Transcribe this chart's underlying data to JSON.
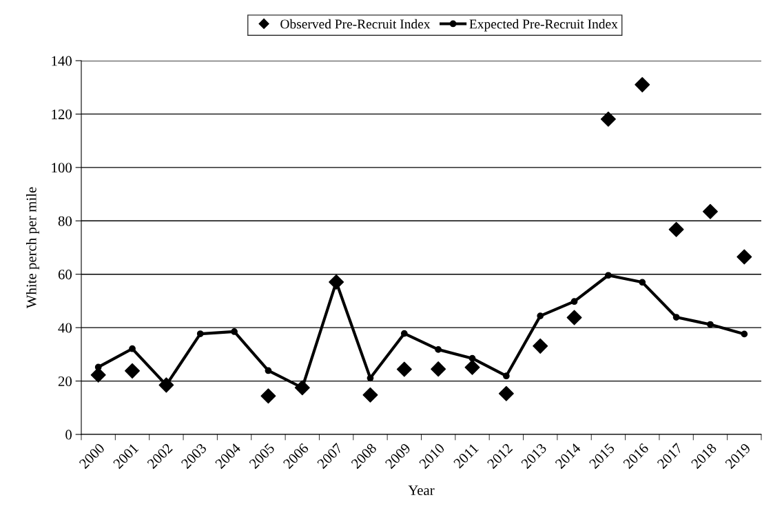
{
  "chart_data": {
    "type": "line",
    "xlabel": "Year",
    "ylabel": "White perch per mile",
    "categories": [
      "2000",
      "2001",
      "2002",
      "2003",
      "2004",
      "2005",
      "2006",
      "2007",
      "2008",
      "2009",
      "2010",
      "2011",
      "2012",
      "2013",
      "2014",
      "2015",
      "2016",
      "2017",
      "2018",
      "2019"
    ],
    "series": [
      {
        "name": "Observed Pre-Recruit Index",
        "type": "scatter",
        "marker": "diamond",
        "color": "#000000",
        "values": [
          22.3,
          23.8,
          18.5,
          null,
          null,
          14.4,
          17.5,
          57.1,
          14.8,
          24.4,
          24.5,
          25.1,
          15.3,
          33.1,
          43.8,
          118.1,
          131.0,
          76.8,
          83.5,
          66.5
        ]
      },
      {
        "name": "Expected Pre-Recruit Index",
        "marker": "circle",
        "color": "#000000",
        "values": [
          25.2,
          32.1,
          18.5,
          37.7,
          38.5,
          23.9,
          17.5,
          57.1,
          21.1,
          37.8,
          31.8,
          28.5,
          21.9,
          44.4,
          49.8,
          59.6,
          57.0,
          43.9,
          41.2,
          37.6
        ]
      }
    ],
    "ylim": [
      0,
      140
    ],
    "yticks": [
      0,
      20,
      40,
      60,
      80,
      100,
      120,
      140
    ],
    "grid": "y",
    "legend": "top"
  }
}
